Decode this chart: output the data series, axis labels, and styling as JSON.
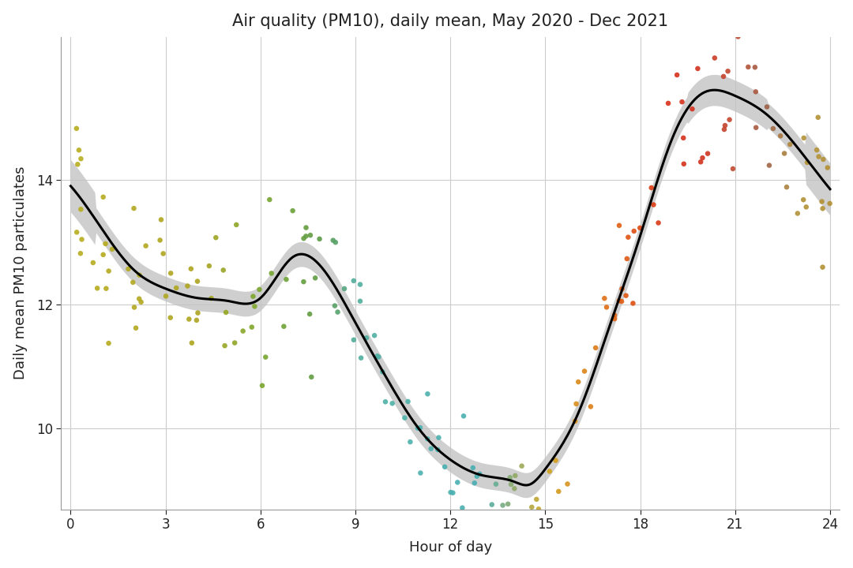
{
  "title": "Air quality (PM10), daily mean, May 2020 - Dec 2021",
  "xlabel": "Hour of day",
  "ylabel": "Daily mean PM10 particulates",
  "xlim": [
    -0.3,
    24.3
  ],
  "xticks": [
    0,
    3,
    6,
    9,
    12,
    15,
    18,
    21,
    24
  ],
  "yticks": [
    10,
    12,
    14
  ],
  "ylim": [
    8.7,
    16.3
  ],
  "curve_color": "#000000",
  "band_color": "#c0c0c0",
  "background_color": "#ffffff",
  "grid_color": "#cccccc",
  "title_fontsize": 15,
  "label_fontsize": 13,
  "tick_fontsize": 12,
  "ctrl_h": [
    0,
    1,
    2,
    3,
    4,
    5,
    6,
    7,
    8,
    9,
    10,
    11,
    12,
    13,
    14,
    14.5,
    15,
    16,
    17,
    18,
    19,
    20,
    21,
    22,
    23,
    24
  ],
  "ctrl_v": [
    13.9,
    13.2,
    12.55,
    12.25,
    12.1,
    12.05,
    12.1,
    12.75,
    12.55,
    11.7,
    10.8,
    10.0,
    9.5,
    9.25,
    9.15,
    9.1,
    9.35,
    10.2,
    11.6,
    13.1,
    14.65,
    15.4,
    15.35,
    15.05,
    14.5,
    13.85
  ],
  "color_hours": [
    0,
    2,
    4,
    5,
    6,
    7,
    8,
    9,
    11,
    13,
    15,
    16,
    17,
    18,
    19,
    20,
    21,
    22,
    23,
    24
  ],
  "color_r": [
    0.72,
    0.7,
    0.68,
    0.58,
    0.48,
    0.42,
    0.35,
    0.32,
    0.3,
    0.28,
    0.82,
    0.85,
    0.88,
    0.87,
    0.85,
    0.82,
    0.75,
    0.62,
    0.7,
    0.7
  ],
  "color_g": [
    0.68,
    0.66,
    0.64,
    0.65,
    0.65,
    0.63,
    0.6,
    0.68,
    0.7,
    0.68,
    0.65,
    0.55,
    0.42,
    0.28,
    0.18,
    0.2,
    0.3,
    0.38,
    0.58,
    0.56
  ],
  "color_b": [
    0.12,
    0.12,
    0.12,
    0.14,
    0.18,
    0.22,
    0.28,
    0.62,
    0.68,
    0.7,
    0.12,
    0.1,
    0.08,
    0.07,
    0.1,
    0.12,
    0.2,
    0.28,
    0.22,
    0.2
  ]
}
